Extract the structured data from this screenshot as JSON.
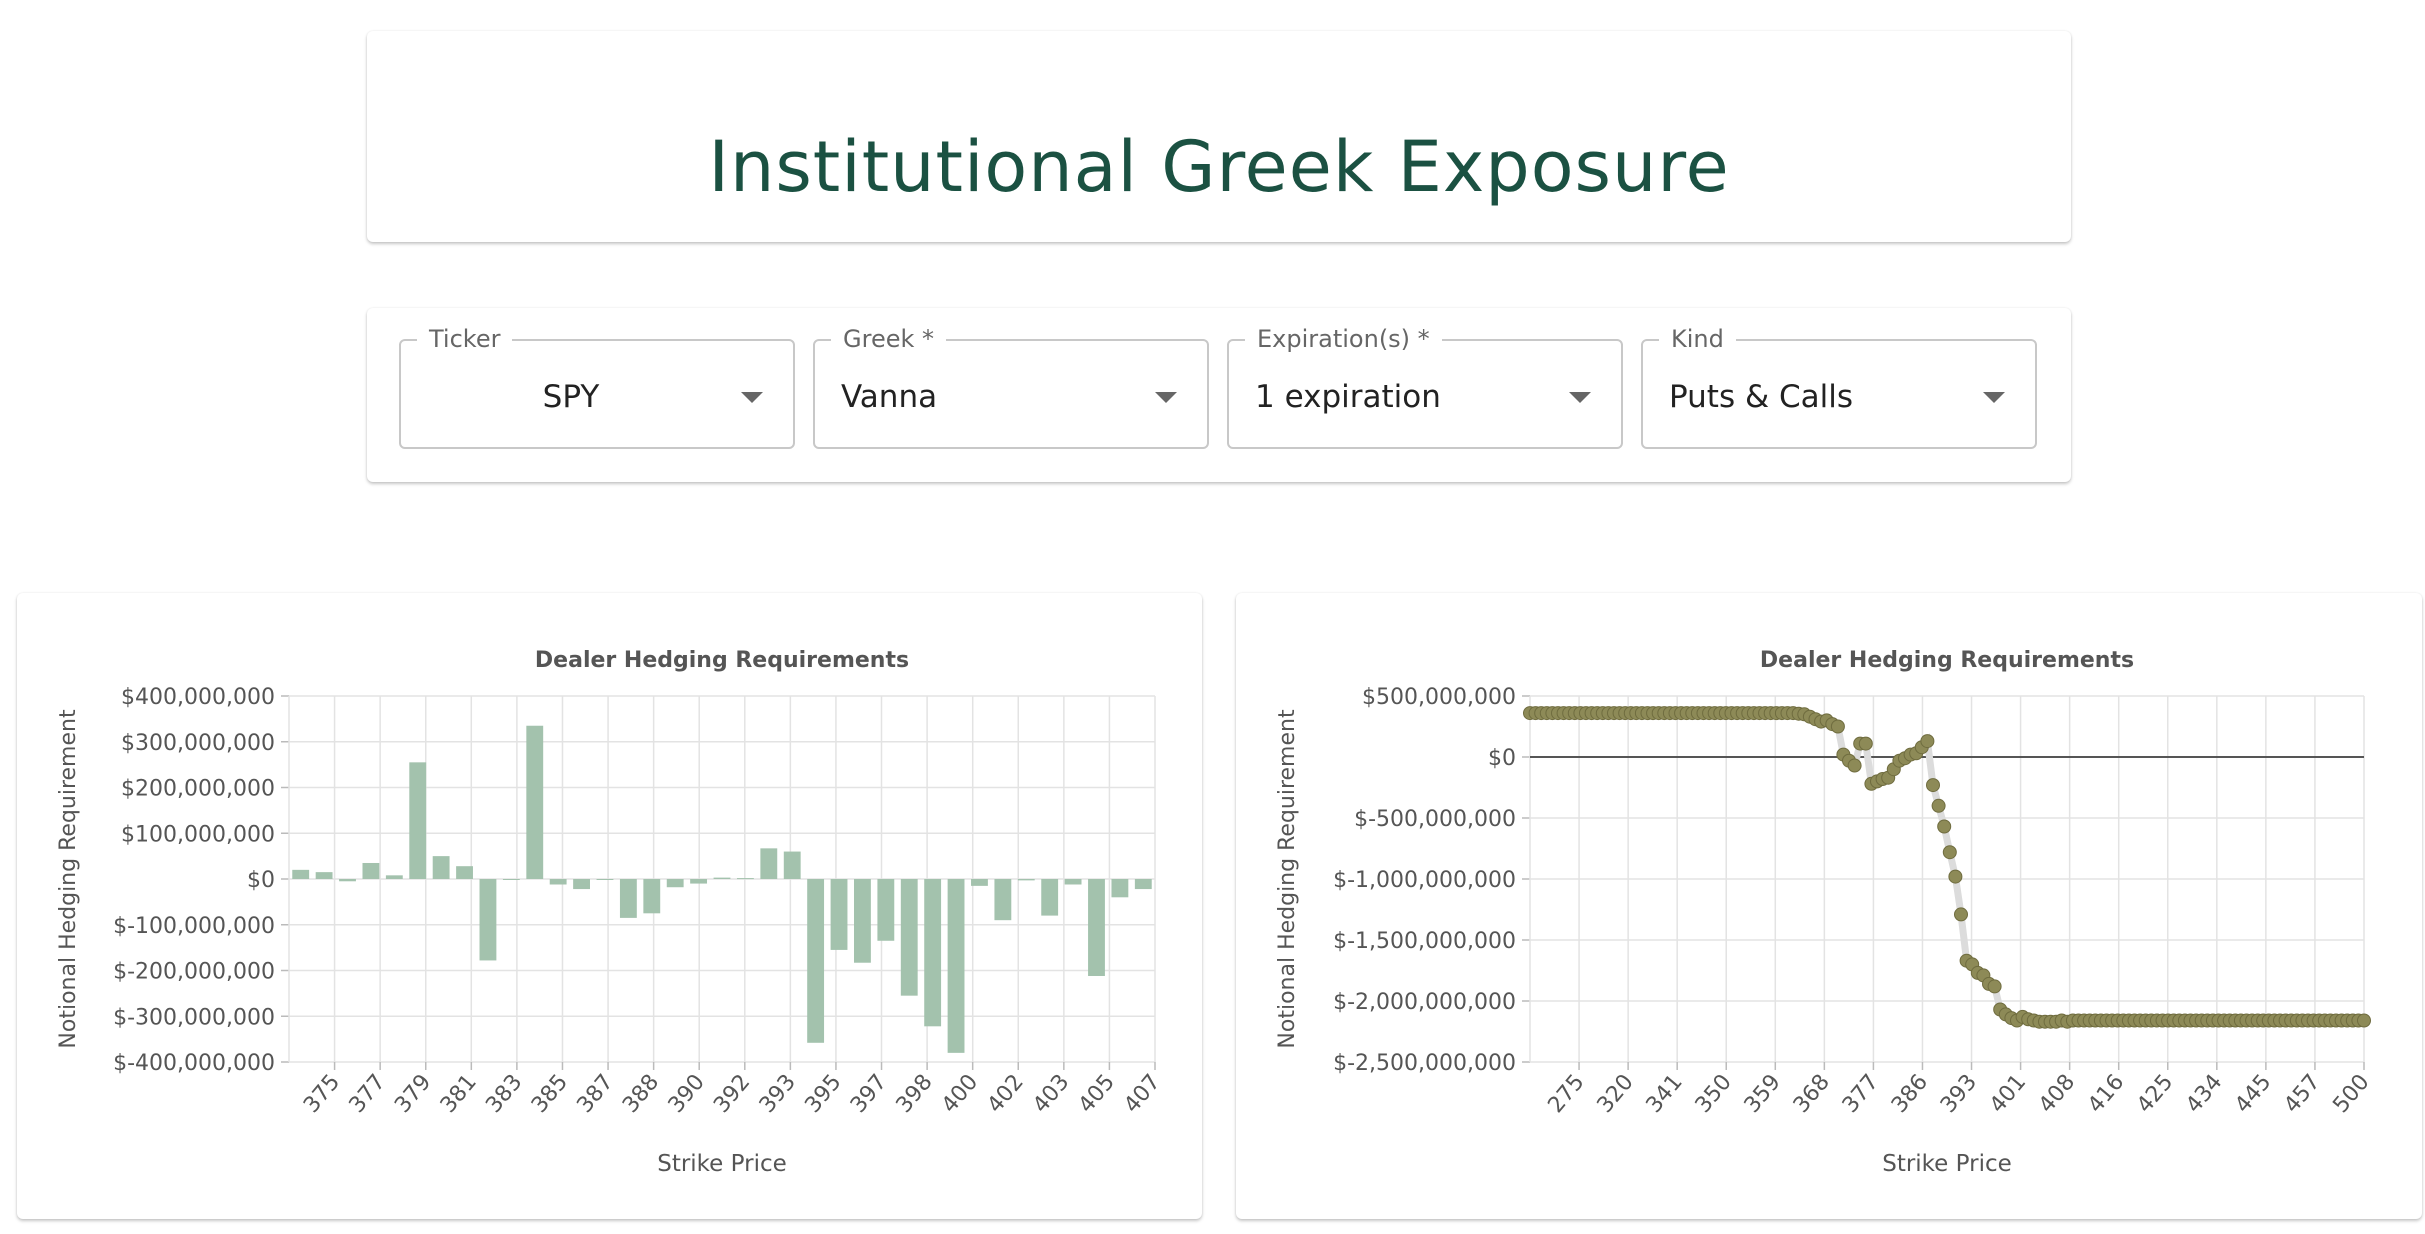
{
  "header": {
    "title": "Institutional Greek Exposure"
  },
  "controls": {
    "ticker": {
      "label": "Ticker",
      "value": "SPY"
    },
    "greek": {
      "label": "Greek *",
      "value": "Vanna"
    },
    "expiration": {
      "label": "Expiration(s) *",
      "value": "1 expiration"
    },
    "kind": {
      "label": "Kind",
      "value": "Puts & Calls"
    }
  },
  "colors": {
    "bar": "#a3c2ad",
    "point": "#8d8a57",
    "point_outline": "#6f6c3f",
    "line": "#dcdcdc",
    "zero_line": "#555555"
  },
  "chart_data": [
    {
      "type": "bar",
      "title": "Dealer Hedging Requirements",
      "xlabel": "Strike Price",
      "ylabel": "Notional Hedging Requirement",
      "ylim": [
        -400000000,
        400000000
      ],
      "yticks": [
        "$400,000,000",
        "$300,000,000",
        "$200,000,000",
        "$100,000,000",
        "$0",
        "$-100,000,000",
        "$-200,000,000",
        "$-300,000,000",
        "$-400,000,000"
      ],
      "xtick_labels": [
        "375",
        "377",
        "379",
        "381",
        "383",
        "385",
        "387",
        "388",
        "390",
        "392",
        "393",
        "395",
        "397",
        "398",
        "400",
        "402",
        "403",
        "405",
        "407"
      ],
      "grid": true,
      "values": [
        20000000,
        15000000,
        -5000000,
        35000000,
        8000000,
        255000000,
        50000000,
        28000000,
        -178000000,
        0,
        335000000,
        -12000000,
        -22000000,
        0,
        -85000000,
        -75000000,
        -18000000,
        -10000000,
        3000000,
        2000000,
        67000000,
        60000000,
        -358000000,
        -155000000,
        -183000000,
        -135000000,
        -255000000,
        -322000000,
        -380000000,
        -15000000,
        -90000000,
        -3000000,
        -80000000,
        -12000000,
        -212000000,
        -40000000,
        -22000000
      ]
    },
    {
      "type": "line",
      "title": "Dealer Hedging Requirements",
      "xlabel": "Strike Price",
      "ylabel": "Notional Hedging Requirement",
      "ylim": [
        -2500000000,
        500000000
      ],
      "yticks": [
        "$500,000,000",
        "$0",
        "$-500,000,000",
        "$-1,000,000,000",
        "$-1,500,000,000",
        "$-2,000,000,000",
        "$-2,500,000,000"
      ],
      "xtick_labels": [
        "275",
        "320",
        "341",
        "350",
        "359",
        "368",
        "377",
        "386",
        "393",
        "401",
        "408",
        "416",
        "425",
        "434",
        "445",
        "457",
        "500"
      ],
      "grid": true,
      "values": [
        360000000,
        360000000,
        360000000,
        360000000,
        360000000,
        360000000,
        360000000,
        360000000,
        360000000,
        360000000,
        360000000,
        360000000,
        360000000,
        360000000,
        360000000,
        360000000,
        360000000,
        360000000,
        360000000,
        360000000,
        360000000,
        360000000,
        360000000,
        360000000,
        360000000,
        360000000,
        360000000,
        360000000,
        360000000,
        360000000,
        360000000,
        360000000,
        360000000,
        360000000,
        360000000,
        360000000,
        360000000,
        360000000,
        360000000,
        360000000,
        360000000,
        360000000,
        360000000,
        360000000,
        360000000,
        360000000,
        360000000,
        360000000,
        355000000,
        350000000,
        330000000,
        310000000,
        290000000,
        300000000,
        270000000,
        250000000,
        20000000,
        -30000000,
        -70000000,
        110000000,
        110000000,
        -220000000,
        -200000000,
        -180000000,
        -170000000,
        -100000000,
        -30000000,
        -10000000,
        20000000,
        30000000,
        80000000,
        130000000,
        -230000000,
        -400000000,
        -570000000,
        -780000000,
        -980000000,
        -1290000000,
        -1670000000,
        -1700000000,
        -1770000000,
        -1790000000,
        -1860000000,
        -1880000000,
        -2070000000,
        -2110000000,
        -2140000000,
        -2160000000,
        -2130000000,
        -2150000000,
        -2160000000,
        -2170000000,
        -2170000000,
        -2170000000,
        -2170000000,
        -2160000000,
        -2170000000,
        -2160000000,
        -2160000000,
        -2160000000,
        -2160000000,
        -2160000000,
        -2160000000,
        -2160000000,
        -2160000000,
        -2160000000,
        -2160000000,
        -2160000000,
        -2160000000,
        -2160000000,
        -2160000000,
        -2160000000,
        -2160000000,
        -2160000000,
        -2160000000,
        -2160000000,
        -2160000000,
        -2160000000,
        -2160000000,
        -2160000000,
        -2160000000,
        -2160000000,
        -2160000000,
        -2160000000,
        -2160000000,
        -2160000000,
        -2160000000,
        -2160000000,
        -2160000000,
        -2160000000,
        -2160000000,
        -2160000000,
        -2160000000,
        -2160000000,
        -2160000000,
        -2160000000,
        -2160000000,
        -2160000000,
        -2160000000,
        -2160000000,
        -2160000000,
        -2160000000,
        -2160000000,
        -2160000000,
        -2160000000,
        -2160000000,
        -2160000000,
        -2160000000,
        -2160000000,
        -2160000000
      ]
    }
  ]
}
